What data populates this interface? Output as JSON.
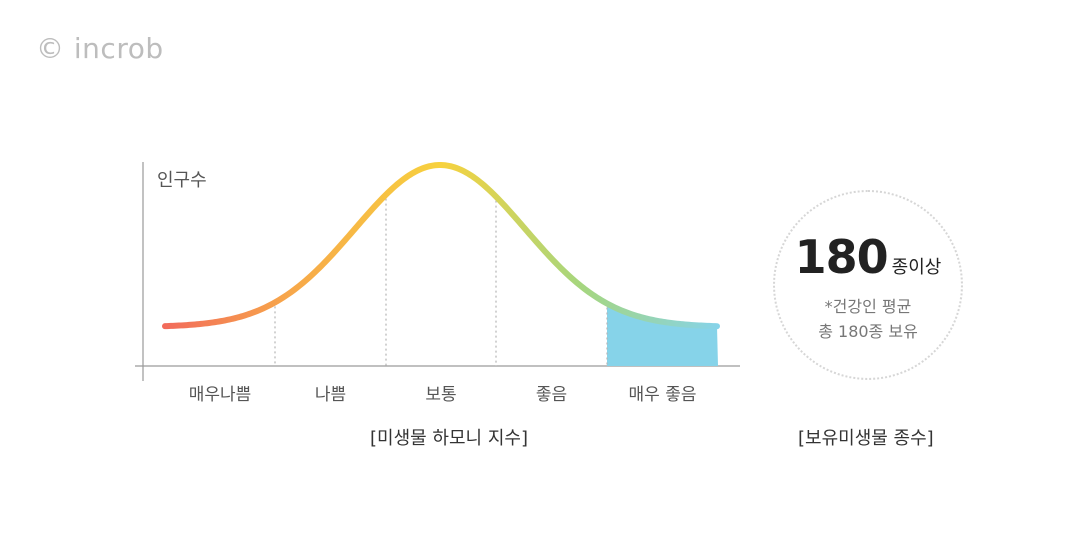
{
  "watermark": "© incrob",
  "chart_data": {
    "type": "area",
    "ylabel": "인구수",
    "xlabel": "[미생물 하모니 지수]",
    "categories": [
      "매우나쁨",
      "나쁨",
      "보통",
      "좋음",
      "매우 좋음"
    ],
    "highlight_category": "매우 좋음",
    "colors": {
      "curve_start": "#f26b5b",
      "curve_mid1": "#f7a64a",
      "curve_peak": "#f7d23e",
      "curve_mid2": "#a6d67e",
      "curve_end": "#86d3e9",
      "highlight_fill": "#86d3e9"
    }
  },
  "stat": {
    "value": "180",
    "unit": "종이상",
    "note_line1": "*건강인 평균",
    "note_line2": "총 180종 보유",
    "caption": "[보유미생물 종수]"
  }
}
